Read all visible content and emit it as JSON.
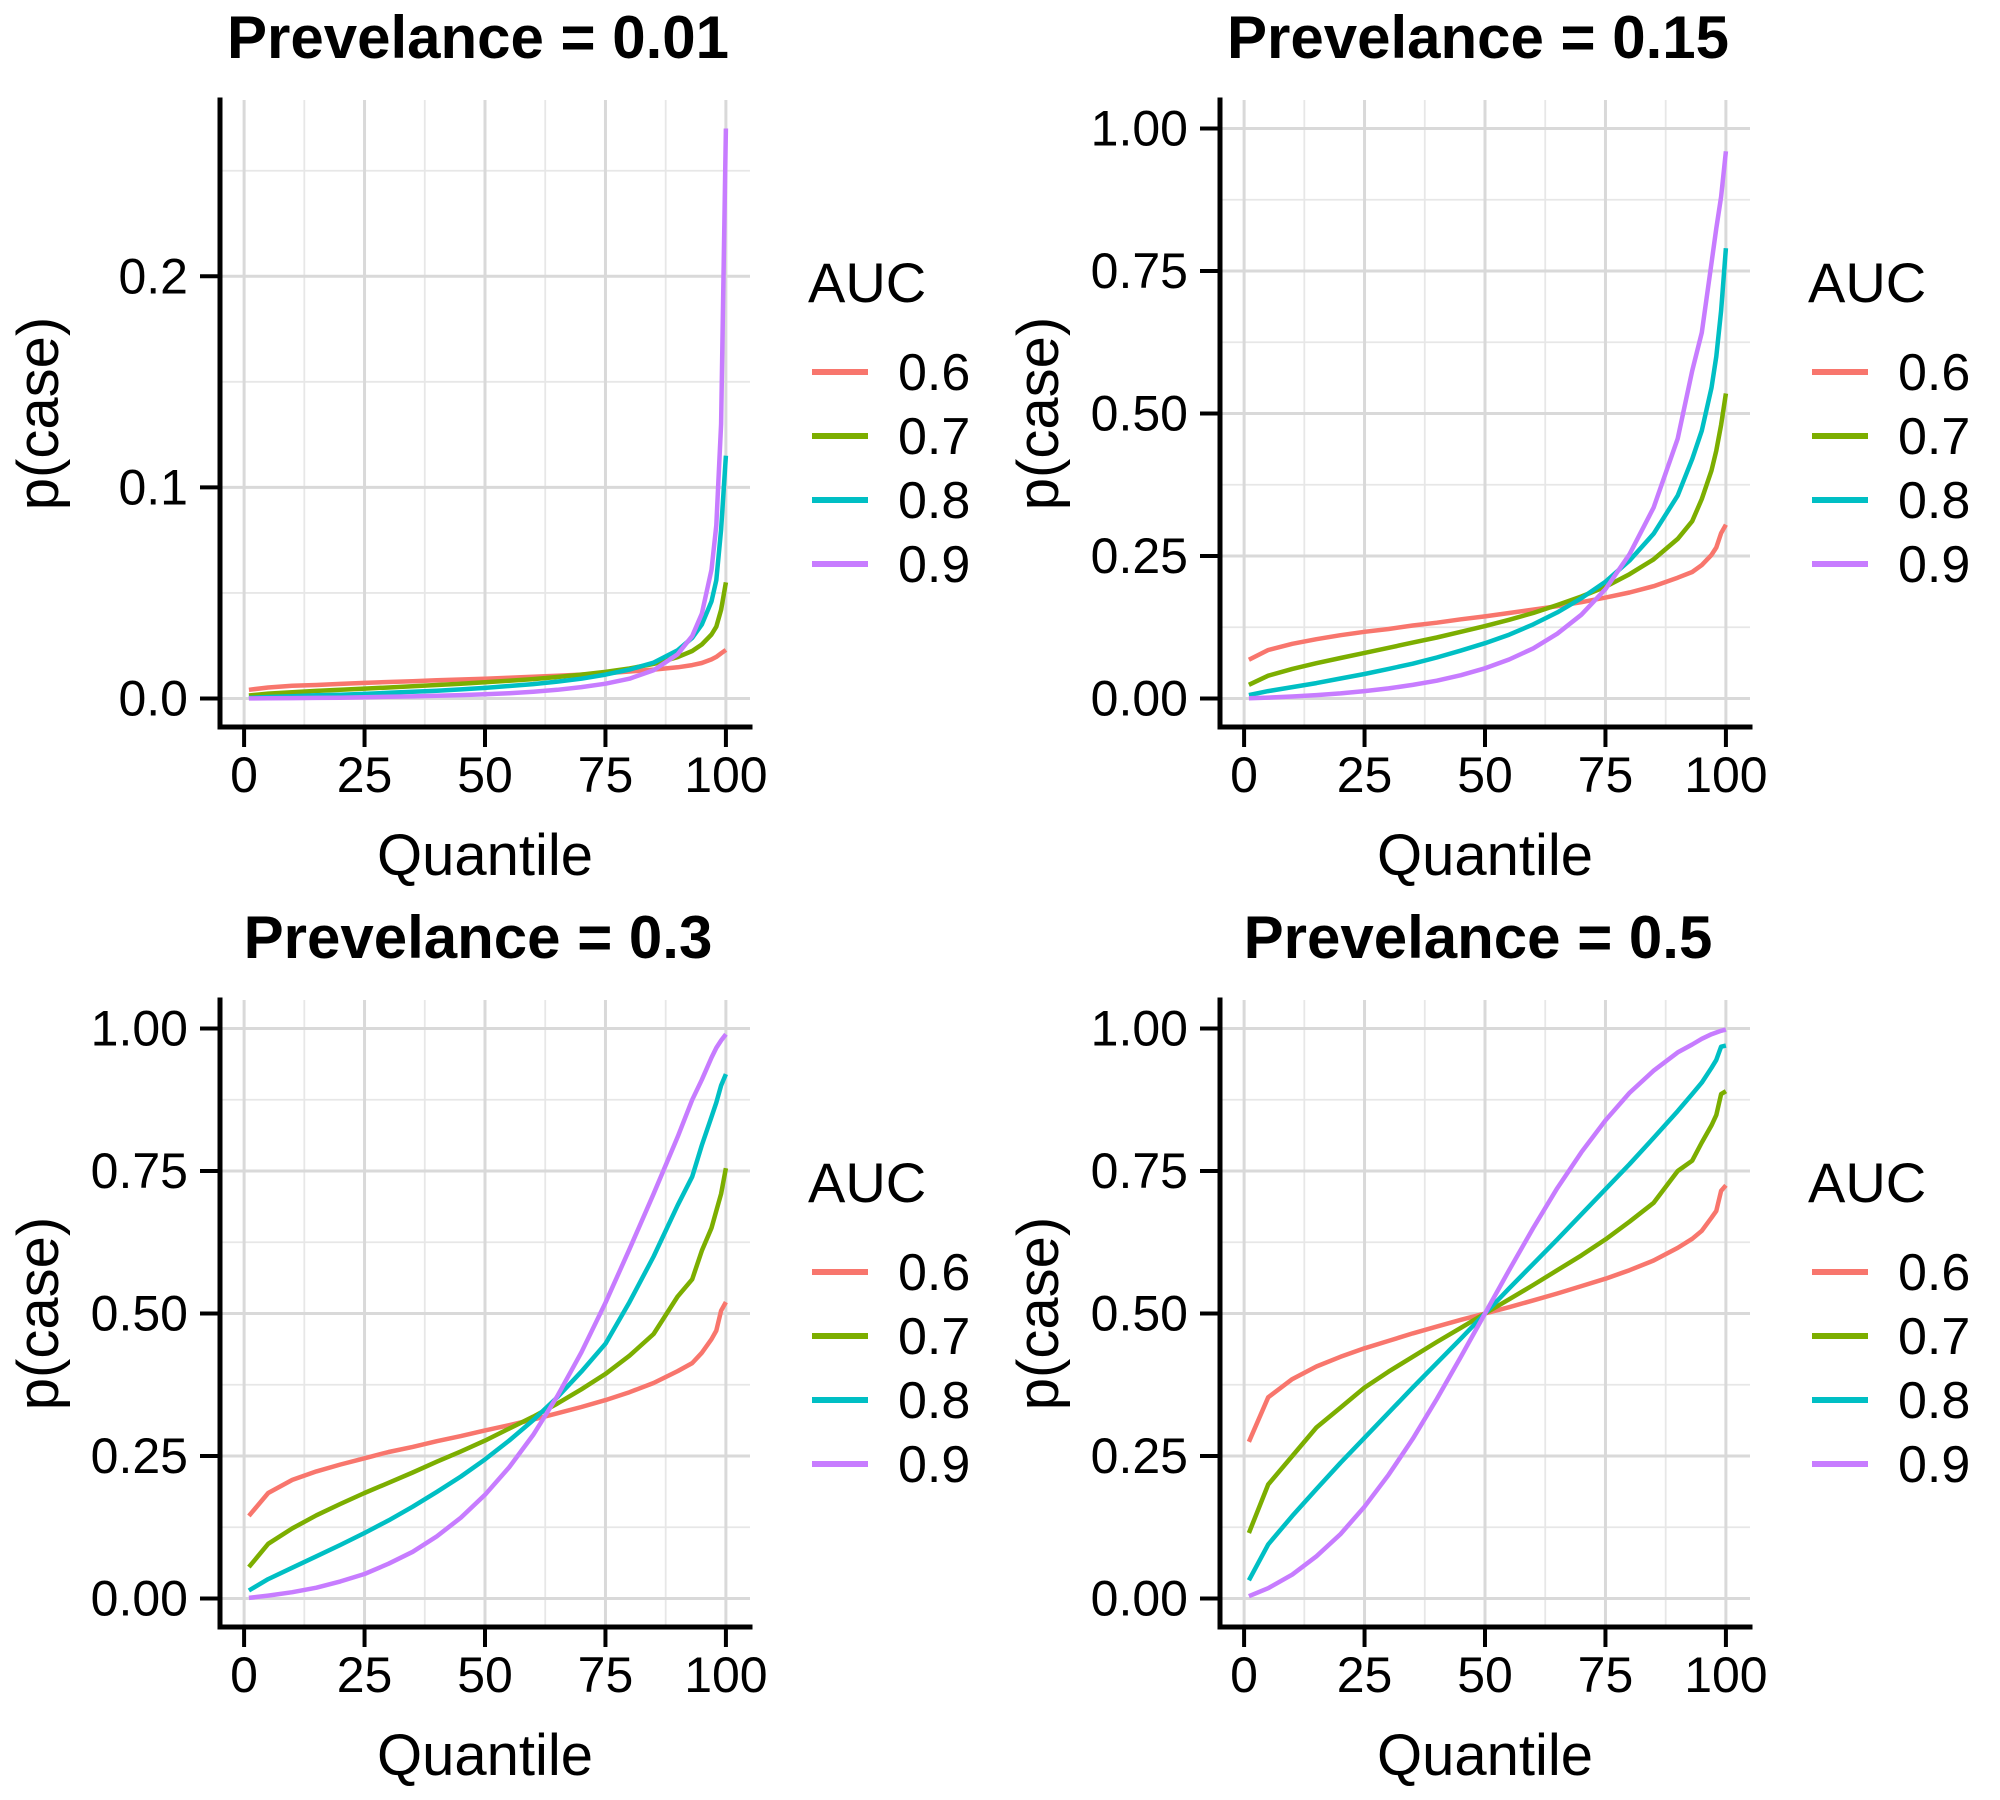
{
  "figure_title": "Prevalence facet grid of p(case) vs Quantile by AUC",
  "palette": {
    "auc_0.6": "#F8766D",
    "auc_0.7": "#7CAE00",
    "auc_0.8": "#00BFC4",
    "auc_0.9": "#C77CFF",
    "grid_major": "#D9D9D9",
    "grid_minor": "#E7E7E7",
    "axis": "#000000",
    "text": "#000000",
    "background": "#FFFFFF"
  },
  "chart_data": [
    {
      "type": "line",
      "title": "Prevelance = 0.01",
      "prevalence": 0.01,
      "xlabel": "Quantile",
      "ylabel": "p(case)",
      "legend_title": "AUC",
      "legend_position": "right",
      "grid": true,
      "xlim": [
        0,
        100
      ],
      "ylim": [
        0,
        0.27
      ],
      "x_ticks": [
        0,
        25,
        50,
        75,
        100
      ],
      "x_tick_labels": [
        "0",
        "25",
        "50",
        "75",
        "100"
      ],
      "x_minor": [
        12.5,
        37.5,
        62.5,
        87.5
      ],
      "y_ticks": [
        0,
        0.1,
        0.2
      ],
      "y_tick_labels": [
        "0.0",
        "0.1",
        "0.2"
      ],
      "y_minor": [
        0.05,
        0.15,
        0.25
      ],
      "x": [
        1,
        5,
        10,
        15,
        20,
        25,
        30,
        35,
        40,
        45,
        50,
        55,
        60,
        65,
        70,
        75,
        80,
        85,
        90,
        93,
        95,
        97,
        98,
        99,
        100
      ],
      "series": [
        {
          "name": "0.6",
          "color": "#F8766D",
          "values": [
            0.0041,
            0.0052,
            0.006,
            0.0064,
            0.0069,
            0.0074,
            0.0078,
            0.0082,
            0.0086,
            0.009,
            0.0094,
            0.0098,
            0.0103,
            0.0108,
            0.0113,
            0.012,
            0.0128,
            0.0137,
            0.0148,
            0.0158,
            0.0168,
            0.0185,
            0.0197,
            0.0214,
            0.023
          ]
        },
        {
          "name": "0.7",
          "color": "#7CAE00",
          "values": [
            0.0014,
            0.0023,
            0.003,
            0.0036,
            0.0041,
            0.0047,
            0.0052,
            0.0058,
            0.0064,
            0.007,
            0.0077,
            0.0084,
            0.0092,
            0.0102,
            0.0113,
            0.0126,
            0.0142,
            0.0164,
            0.0196,
            0.0225,
            0.0256,
            0.0303,
            0.034,
            0.042,
            0.055
          ]
        },
        {
          "name": "0.8",
          "color": "#00BFC4",
          "values": [
            0.0003,
            0.0007,
            0.0011,
            0.0015,
            0.0018,
            0.0022,
            0.0027,
            0.0032,
            0.0037,
            0.0043,
            0.005,
            0.0059,
            0.0068,
            0.008,
            0.0094,
            0.0113,
            0.0137,
            0.017,
            0.0229,
            0.0287,
            0.035,
            0.046,
            0.056,
            0.08,
            0.115
          ]
        },
        {
          "name": "0.9",
          "color": "#C77CFF",
          "values": [
            3e-05,
            0.0001,
            0.0002,
            0.0003,
            0.0004,
            0.0006,
            0.0008,
            0.001,
            0.0013,
            0.0016,
            0.002,
            0.0025,
            0.0032,
            0.0041,
            0.0054,
            0.007,
            0.0094,
            0.0134,
            0.021,
            0.0296,
            0.0401,
            0.061,
            0.082,
            0.13,
            0.27
          ]
        }
      ]
    },
    {
      "type": "line",
      "title": "Prevelance = 0.15",
      "prevalence": 0.15,
      "xlabel": "Quantile",
      "ylabel": "p(case)",
      "legend_title": "AUC",
      "legend_position": "right",
      "grid": true,
      "xlim": [
        0,
        100
      ],
      "ylim": [
        0,
        1
      ],
      "x_ticks": [
        0,
        25,
        50,
        75,
        100
      ],
      "x_tick_labels": [
        "0",
        "25",
        "50",
        "75",
        "100"
      ],
      "x_minor": [
        12.5,
        37.5,
        62.5,
        87.5
      ],
      "y_ticks": [
        0,
        0.25,
        0.5,
        0.75,
        1
      ],
      "y_tick_labels": [
        "0.00",
        "0.25",
        "0.50",
        "0.75",
        "1.00"
      ],
      "y_minor": [
        0.125,
        0.375,
        0.625,
        0.875
      ],
      "x": [
        1,
        5,
        10,
        15,
        20,
        25,
        30,
        35,
        40,
        45,
        50,
        55,
        60,
        65,
        70,
        75,
        80,
        85,
        90,
        93,
        95,
        97,
        98,
        99,
        100
      ],
      "series": [
        {
          "name": "0.6",
          "color": "#F8766D",
          "values": [
            0.068,
            0.085,
            0.096,
            0.104,
            0.111,
            0.117,
            0.122,
            0.128,
            0.133,
            0.139,
            0.144,
            0.15,
            0.156,
            0.162,
            0.169,
            0.177,
            0.186,
            0.197,
            0.212,
            0.222,
            0.234,
            0.252,
            0.265,
            0.29,
            0.305
          ]
        },
        {
          "name": "0.7",
          "color": "#7CAE00",
          "values": [
            0.024,
            0.04,
            0.052,
            0.062,
            0.071,
            0.08,
            0.089,
            0.098,
            0.107,
            0.117,
            0.127,
            0.138,
            0.15,
            0.164,
            0.179,
            0.196,
            0.218,
            0.244,
            0.28,
            0.311,
            0.35,
            0.4,
            0.435,
            0.48,
            0.535
          ]
        },
        {
          "name": "0.8",
          "color": "#00BFC4",
          "values": [
            0.006,
            0.013,
            0.02,
            0.027,
            0.035,
            0.043,
            0.052,
            0.061,
            0.072,
            0.084,
            0.097,
            0.112,
            0.13,
            0.151,
            0.176,
            0.205,
            0.242,
            0.289,
            0.356,
            0.42,
            0.47,
            0.545,
            0.6,
            0.68,
            0.79
          ]
        },
        {
          "name": "0.9",
          "color": "#C77CFF",
          "values": [
            0.0004,
            0.0016,
            0.0035,
            0.006,
            0.009,
            0.0129,
            0.0177,
            0.0238,
            0.0313,
            0.0408,
            0.0529,
            0.0684,
            0.0879,
            0.1136,
            0.147,
            0.192,
            0.253,
            0.335,
            0.456,
            0.575,
            0.642,
            0.764,
            0.825,
            0.88,
            0.96
          ]
        }
      ]
    },
    {
      "type": "line",
      "title": "Prevelance = 0.3",
      "prevalence": 0.3,
      "xlabel": "Quantile",
      "ylabel": "p(case)",
      "legend_title": "AUC",
      "legend_position": "right",
      "grid": true,
      "xlim": [
        0,
        100
      ],
      "ylim": [
        0,
        1
      ],
      "x_ticks": [
        0,
        25,
        50,
        75,
        100
      ],
      "x_tick_labels": [
        "0",
        "25",
        "50",
        "75",
        "100"
      ],
      "x_minor": [
        12.5,
        37.5,
        62.5,
        87.5
      ],
      "y_ticks": [
        0,
        0.25,
        0.5,
        0.75,
        1
      ],
      "y_tick_labels": [
        "0.00",
        "0.25",
        "0.50",
        "0.75",
        "1.00"
      ],
      "y_minor": [
        0.125,
        0.375,
        0.625,
        0.875
      ],
      "x": [
        1,
        5,
        10,
        15,
        20,
        25,
        30,
        35,
        40,
        45,
        50,
        55,
        60,
        65,
        70,
        75,
        80,
        85,
        90,
        93,
        95,
        97,
        98,
        99,
        100
      ],
      "series": [
        {
          "name": "0.6",
          "color": "#F8766D",
          "values": [
            0.145,
            0.185,
            0.208,
            0.223,
            0.235,
            0.246,
            0.257,
            0.266,
            0.276,
            0.285,
            0.295,
            0.304,
            0.314,
            0.325,
            0.336,
            0.348,
            0.362,
            0.378,
            0.399,
            0.413,
            0.431,
            0.455,
            0.47,
            0.505,
            0.52
          ]
        },
        {
          "name": "0.7",
          "color": "#7CAE00",
          "values": [
            0.055,
            0.096,
            0.123,
            0.146,
            0.166,
            0.185,
            0.203,
            0.221,
            0.24,
            0.258,
            0.277,
            0.298,
            0.319,
            0.342,
            0.367,
            0.394,
            0.426,
            0.464,
            0.53,
            0.56,
            0.61,
            0.65,
            0.68,
            0.71,
            0.755
          ]
        },
        {
          "name": "0.8",
          "color": "#00BFC4",
          "values": [
            0.014,
            0.034,
            0.054,
            0.074,
            0.094,
            0.115,
            0.137,
            0.161,
            0.187,
            0.214,
            0.244,
            0.277,
            0.313,
            0.353,
            0.398,
            0.447,
            0.52,
            0.6,
            0.69,
            0.74,
            0.795,
            0.845,
            0.87,
            0.9,
            0.92
          ]
        },
        {
          "name": "0.9",
          "color": "#C77CFF",
          "values": [
            0.001,
            0.005,
            0.011,
            0.019,
            0.03,
            0.043,
            0.061,
            0.082,
            0.109,
            0.142,
            0.182,
            0.23,
            0.287,
            0.355,
            0.432,
            0.519,
            0.613,
            0.71,
            0.81,
            0.875,
            0.91,
            0.949,
            0.966,
            0.979,
            0.99
          ]
        }
      ]
    },
    {
      "type": "line",
      "title": "Prevelance = 0.5",
      "prevalence": 0.5,
      "xlabel": "Quantile",
      "ylabel": "p(case)",
      "legend_title": "AUC",
      "legend_position": "right",
      "grid": true,
      "xlim": [
        0,
        100
      ],
      "ylim": [
        0,
        1
      ],
      "x_ticks": [
        0,
        25,
        50,
        75,
        100
      ],
      "x_tick_labels": [
        "0",
        "25",
        "50",
        "75",
        "100"
      ],
      "x_minor": [
        12.5,
        37.5,
        62.5,
        87.5
      ],
      "y_ticks": [
        0,
        0.25,
        0.5,
        0.75,
        1
      ],
      "y_tick_labels": [
        "0.00",
        "0.25",
        "0.50",
        "0.75",
        "1.00"
      ],
      "y_minor": [
        0.125,
        0.375,
        0.625,
        0.875
      ],
      "x": [
        1,
        5,
        10,
        15,
        20,
        25,
        30,
        35,
        40,
        45,
        50,
        55,
        60,
        65,
        70,
        75,
        80,
        85,
        90,
        93,
        95,
        97,
        98,
        99,
        100
      ],
      "series": [
        {
          "name": "0.6",
          "color": "#F8766D",
          "values": [
            0.275,
            0.353,
            0.385,
            0.407,
            0.424,
            0.439,
            0.452,
            0.465,
            0.477,
            0.489,
            0.5,
            0.511,
            0.523,
            0.535,
            0.548,
            0.561,
            0.576,
            0.593,
            0.615,
            0.631,
            0.645,
            0.668,
            0.68,
            0.715,
            0.725
          ]
        },
        {
          "name": "0.7",
          "color": "#7CAE00",
          "values": [
            0.115,
            0.2,
            0.25,
            0.3,
            0.335,
            0.37,
            0.398,
            0.424,
            0.45,
            0.475,
            0.5,
            0.525,
            0.55,
            0.576,
            0.602,
            0.63,
            0.661,
            0.694,
            0.75,
            0.768,
            0.8,
            0.83,
            0.848,
            0.885,
            0.89
          ]
        },
        {
          "name": "0.8",
          "color": "#00BFC4",
          "values": [
            0.032,
            0.095,
            0.145,
            0.192,
            0.238,
            0.282,
            0.326,
            0.37,
            0.413,
            0.456,
            0.5,
            0.544,
            0.587,
            0.63,
            0.674,
            0.718,
            0.762,
            0.808,
            0.855,
            0.885,
            0.905,
            0.931,
            0.945,
            0.968,
            0.97
          ]
        },
        {
          "name": "0.9",
          "color": "#C77CFF",
          "values": [
            0.004,
            0.018,
            0.042,
            0.074,
            0.113,
            0.161,
            0.217,
            0.28,
            0.35,
            0.424,
            0.5,
            0.576,
            0.65,
            0.72,
            0.783,
            0.839,
            0.887,
            0.926,
            0.958,
            0.972,
            0.982,
            0.99,
            0.993,
            0.996,
            0.998
          ]
        }
      ]
    }
  ]
}
